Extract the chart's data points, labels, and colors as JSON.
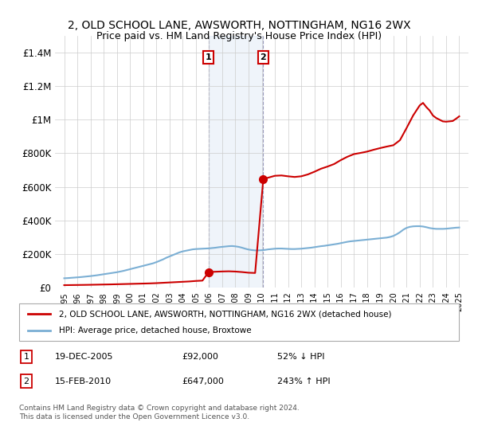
{
  "title": "2, OLD SCHOOL LANE, AWSWORTH, NOTTINGHAM, NG16 2WX",
  "subtitle": "Price paid vs. HM Land Registry's House Price Index (HPI)",
  "legend_line1": "2, OLD SCHOOL LANE, AWSWORTH, NOTTINGHAM, NG16 2WX (detached house)",
  "legend_line2": "HPI: Average price, detached house, Broxtowe",
  "marker1_date": "19-DEC-2005",
  "marker1_price": "£92,000",
  "marker1_hpi": "52% ↓ HPI",
  "marker2_date": "15-FEB-2010",
  "marker2_price": "£647,000",
  "marker2_hpi": "243% ↑ HPI",
  "footnote": "Contains HM Land Registry data © Crown copyright and database right 2024.\nThis data is licensed under the Open Government Licence v3.0.",
  "hpi_color": "#7bafd4",
  "price_color": "#cc0000",
  "shading_color": "#ccddf0",
  "background_color": "#ffffff",
  "ylim": [
    0,
    1500000
  ],
  "yticks": [
    0,
    200000,
    400000,
    600000,
    800000,
    1000000,
    1200000,
    1400000
  ],
  "ytick_labels": [
    "£0",
    "£200K",
    "£400K",
    "£600K",
    "£800K",
    "£1M",
    "£1.2M",
    "£1.4M"
  ],
  "xlim": [
    1994.3,
    2025.7
  ],
  "sale1_year": 2005.96,
  "sale1_value": 92000,
  "sale2_year": 2010.12,
  "sale2_value": 647000,
  "years_hpi": [
    1995.0,
    1995.25,
    1995.5,
    1995.75,
    1996.0,
    1996.25,
    1996.5,
    1996.75,
    1997.0,
    1997.25,
    1997.5,
    1997.75,
    1998.0,
    1998.25,
    1998.5,
    1998.75,
    1999.0,
    1999.25,
    1999.5,
    1999.75,
    2000.0,
    2000.25,
    2000.5,
    2000.75,
    2001.0,
    2001.25,
    2001.5,
    2001.75,
    2002.0,
    2002.25,
    2002.5,
    2002.75,
    2003.0,
    2003.25,
    2003.5,
    2003.75,
    2004.0,
    2004.25,
    2004.5,
    2004.75,
    2005.0,
    2005.25,
    2005.5,
    2005.75,
    2006.0,
    2006.25,
    2006.5,
    2006.75,
    2007.0,
    2007.25,
    2007.5,
    2007.75,
    2008.0,
    2008.25,
    2008.5,
    2008.75,
    2009.0,
    2009.25,
    2009.5,
    2009.75,
    2010.0,
    2010.25,
    2010.5,
    2010.75,
    2011.0,
    2011.25,
    2011.5,
    2011.75,
    2012.0,
    2012.25,
    2012.5,
    2012.75,
    2013.0,
    2013.25,
    2013.5,
    2013.75,
    2014.0,
    2014.25,
    2014.5,
    2014.75,
    2015.0,
    2015.25,
    2015.5,
    2015.75,
    2016.0,
    2016.25,
    2016.5,
    2016.75,
    2017.0,
    2017.25,
    2017.5,
    2017.75,
    2018.0,
    2018.25,
    2018.5,
    2018.75,
    2019.0,
    2019.25,
    2019.5,
    2019.75,
    2020.0,
    2020.25,
    2020.5,
    2020.75,
    2021.0,
    2021.25,
    2021.5,
    2021.75,
    2022.0,
    2022.25,
    2022.5,
    2022.75,
    2023.0,
    2023.25,
    2023.5,
    2023.75,
    2024.0,
    2024.25,
    2024.5,
    2024.75,
    2025.0
  ],
  "values_hpi": [
    56000,
    57000,
    58500,
    60000,
    61500,
    63000,
    65000,
    67000,
    69000,
    71500,
    74000,
    77000,
    80000,
    83000,
    86000,
    89000,
    92000,
    96000,
    100000,
    105000,
    110000,
    115000,
    120000,
    125000,
    130000,
    135000,
    140000,
    145000,
    152000,
    160000,
    168000,
    178000,
    186000,
    194000,
    202000,
    210000,
    216000,
    220000,
    224000,
    228000,
    230000,
    231000,
    232000,
    233000,
    234000,
    236000,
    238000,
    241000,
    243000,
    245000,
    247000,
    248000,
    246000,
    243000,
    238000,
    232000,
    227000,
    224000,
    222000,
    222000,
    223000,
    225000,
    228000,
    230000,
    232000,
    233000,
    233000,
    232000,
    231000,
    230000,
    230000,
    231000,
    232000,
    234000,
    236000,
    238000,
    241000,
    244000,
    247000,
    249000,
    252000,
    255000,
    258000,
    261000,
    265000,
    269000,
    273000,
    276000,
    278000,
    280000,
    282000,
    284000,
    286000,
    288000,
    290000,
    292000,
    294000,
    296000,
    298000,
    302000,
    308000,
    318000,
    330000,
    345000,
    356000,
    362000,
    365000,
    366000,
    366000,
    364000,
    360000,
    355000,
    352000,
    350000,
    350000,
    350000,
    351000,
    353000,
    355000,
    357000,
    358000
  ],
  "years_red_seg1": [
    1995.0,
    1995.5,
    1996.0,
    1996.5,
    1997.0,
    1997.5,
    1998.0,
    1998.5,
    1999.0,
    1999.5,
    2000.0,
    2000.5,
    2001.0,
    2001.5,
    2002.0,
    2002.5,
    2003.0,
    2003.5,
    2004.0,
    2004.5,
    2005.0,
    2005.5,
    2005.96
  ],
  "values_red_seg1": [
    15000,
    15500,
    16000,
    16500,
    17200,
    18000,
    18800,
    19500,
    20500,
    21500,
    22500,
    23500,
    24500,
    25500,
    27000,
    29000,
    31000,
    33000,
    35000,
    37000,
    40000,
    42000,
    92000
  ],
  "years_red_seg2": [
    2005.96,
    2006.0,
    2006.5,
    2007.0,
    2007.5,
    2008.0,
    2008.5,
    2009.0,
    2009.5,
    2010.12
  ],
  "values_red_seg2": [
    92000,
    93000,
    95000,
    96500,
    97500,
    96000,
    93000,
    89000,
    87500,
    647000
  ],
  "years_red_seg3": [
    2010.12,
    2010.5,
    2011.0,
    2011.5,
    2012.0,
    2012.5,
    2013.0,
    2013.5,
    2014.0,
    2014.5,
    2015.0,
    2015.5,
    2016.0,
    2016.5,
    2017.0,
    2017.5,
    2018.0,
    2018.5,
    2019.0,
    2019.5,
    2020.0,
    2020.5,
    2021.0,
    2021.5,
    2022.0,
    2022.25,
    2022.5,
    2022.75,
    2023.0,
    2023.25,
    2023.5,
    2023.75,
    2024.0,
    2024.25,
    2024.5,
    2024.75,
    2025.0
  ],
  "values_red_seg3": [
    647000,
    655000,
    666000,
    668000,
    663000,
    659000,
    663000,
    674000,
    690000,
    708000,
    721000,
    736000,
    759000,
    779000,
    795000,
    802000,
    810000,
    821000,
    831000,
    840000,
    848000,
    878000,
    950000,
    1025000,
    1085000,
    1100000,
    1075000,
    1055000,
    1025000,
    1010000,
    1000000,
    990000,
    988000,
    990000,
    992000,
    1005000,
    1020000
  ]
}
